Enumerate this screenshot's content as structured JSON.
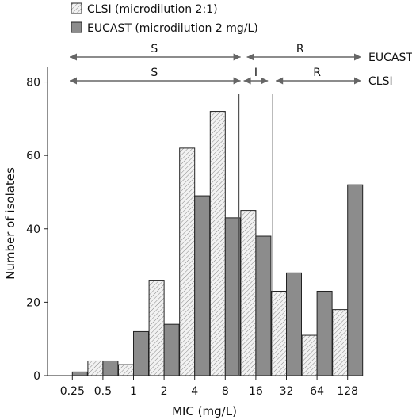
{
  "chart_data": {
    "type": "bar",
    "xlabel": "MIC (mg/L)",
    "ylabel": "Number of isolates",
    "ylim": [
      0,
      85
    ],
    "yticks": [
      0,
      20,
      40,
      60,
      80
    ],
    "categories": [
      "0.25",
      "0.5",
      "1",
      "2",
      "4",
      "8",
      "16",
      "32",
      "64",
      "128"
    ],
    "series": [
      {
        "name": "CLSI (microdilution 2:1)",
        "pattern": "hatched",
        "color": "#f2f2f2",
        "values": [
          0,
          4,
          3,
          26,
          62,
          72,
          45,
          23,
          11,
          18
        ]
      },
      {
        "name": "EUCAST (microdilution 2 mg/L)",
        "pattern": "solid",
        "color": "#8c8c8c",
        "values": [
          1,
          4,
          12,
          14,
          49,
          43,
          38,
          28,
          23,
          52
        ]
      }
    ],
    "legend_position": "top-left",
    "breakpoints": [
      {
        "standard": "EUCAST",
        "divider_between": [
          "8",
          "16"
        ],
        "segments": [
          {
            "label": "S",
            "from": "0.25",
            "to": "8"
          },
          {
            "label": "R",
            "from": "16",
            "to": "128"
          }
        ]
      },
      {
        "standard": "CLSI",
        "divider_between": [
          "8",
          "16"
        ],
        "divider2_between": [
          "16",
          "32"
        ],
        "segments": [
          {
            "label": "S",
            "from": "0.25",
            "to": "8"
          },
          {
            "label": "I",
            "from": "16",
            "to": "16"
          },
          {
            "label": "R",
            "from": "32",
            "to": "128"
          }
        ]
      }
    ]
  }
}
